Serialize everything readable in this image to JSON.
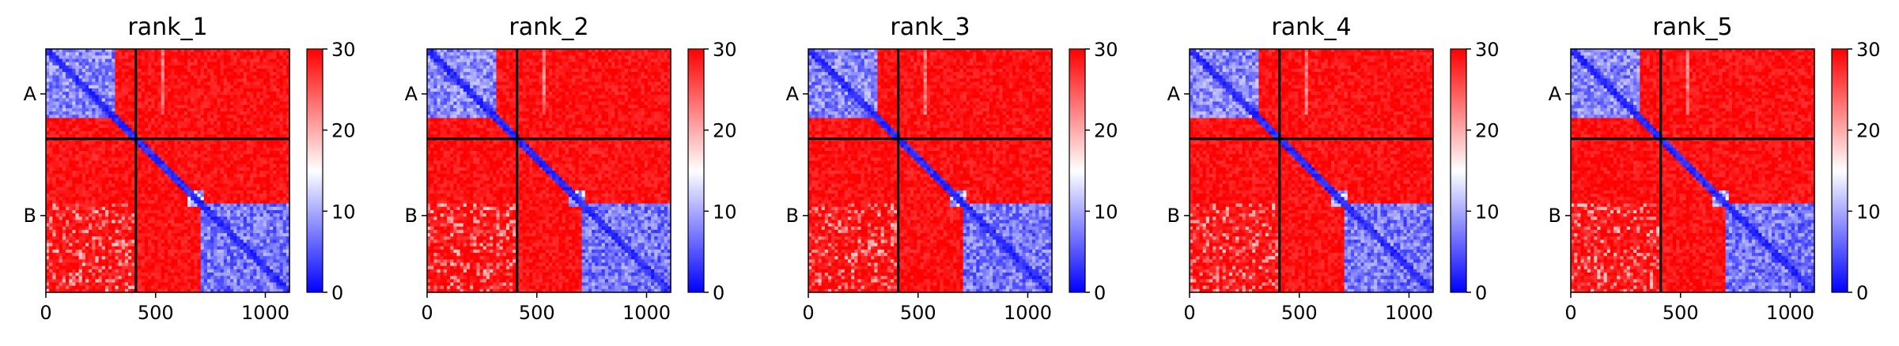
{
  "chart_data": {
    "type": "heatmap",
    "colormap": {
      "name": "bwr",
      "low": "#0000ff",
      "mid": "#ffffff",
      "high": "#ff0000"
    },
    "separator_color": "#000000",
    "x_ticks": [
      0,
      500,
      1000
    ],
    "x_range": [
      0,
      1110
    ],
    "y_range": [
      0,
      1110
    ],
    "boundary": 410,
    "chain_labels": [
      {
        "label": "A",
        "position": 205
      },
      {
        "label": "B",
        "position": 760
      }
    ],
    "colorbar": {
      "range": [
        0,
        30
      ],
      "ticks": [
        0,
        10,
        20,
        30
      ]
    },
    "panels": [
      {
        "title": "rank_1"
      },
      {
        "title": "rank_2"
      },
      {
        "title": "rank_3"
      },
      {
        "title": "rank_4"
      },
      {
        "title": "rank_5"
      }
    ]
  }
}
